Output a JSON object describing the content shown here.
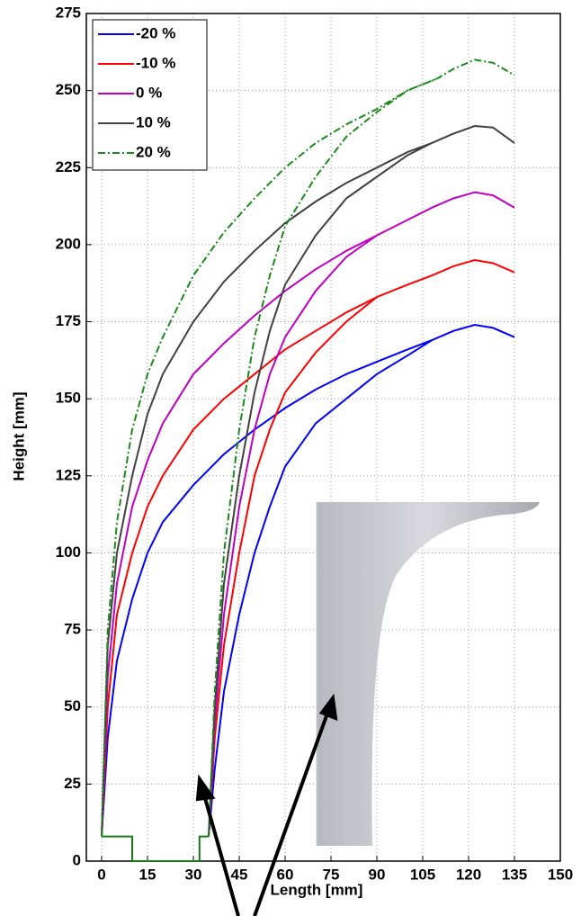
{
  "chart_data": {
    "type": "line",
    "xlabel": "Length [mm]",
    "ylabel": "Height [mm]",
    "xlim": [
      -5,
      150
    ],
    "xticks": [
      0,
      15,
      30,
      45,
      60,
      75,
      90,
      105,
      120,
      135,
      150
    ],
    "ylim": [
      0,
      275
    ],
    "yticks": [
      0,
      25,
      50,
      75,
      100,
      125,
      150,
      175,
      200,
      225,
      250,
      275
    ],
    "grid": true,
    "legend": "upper left",
    "series": [
      {
        "name": "-20 %",
        "color": "#0000ff",
        "dash": "solid",
        "x": [
          0,
          2,
          5,
          10,
          15,
          20,
          30,
          40,
          50,
          60,
          70,
          80,
          90,
          100,
          108,
          115,
          122,
          128,
          135,
          null,
          35,
          37,
          40,
          45,
          50,
          55,
          60,
          70,
          80,
          90,
          100,
          108
        ],
        "values": [
          8,
          40,
          65,
          85,
          100,
          110,
          122,
          132,
          140,
          147,
          153,
          158,
          162,
          166,
          169,
          172,
          174,
          173,
          170,
          null,
          8,
          30,
          55,
          80,
          100,
          115,
          128,
          142,
          150,
          158,
          164,
          169
        ]
      },
      {
        "name": "-10 %",
        "color": "#ff0000",
        "dash": "solid",
        "x": [
          0,
          2,
          5,
          10,
          15,
          20,
          30,
          40,
          50,
          60,
          70,
          80,
          90,
          100,
          108,
          115,
          122,
          128,
          135,
          null,
          35,
          37,
          40,
          45,
          50,
          55,
          60,
          70,
          80,
          90,
          100,
          108
        ],
        "values": [
          8,
          50,
          80,
          100,
          115,
          125,
          140,
          150,
          158,
          166,
          172,
          178,
          183,
          187,
          190,
          193,
          195,
          194,
          191,
          null,
          8,
          40,
          70,
          100,
          125,
          140,
          152,
          165,
          175,
          183,
          187,
          190
        ]
      },
      {
        "name": "0 %",
        "color": "#c000c0",
        "dash": "solid",
        "x": [
          0,
          2,
          5,
          10,
          15,
          20,
          30,
          40,
          50,
          60,
          70,
          80,
          90,
          100,
          108,
          115,
          122,
          128,
          135,
          null,
          35,
          37,
          40,
          45,
          50,
          55,
          60,
          70,
          80,
          90,
          100,
          108
        ],
        "values": [
          8,
          60,
          90,
          115,
          130,
          142,
          158,
          168,
          177,
          185,
          192,
          198,
          203,
          208,
          212,
          215,
          217,
          216,
          212,
          null,
          8,
          45,
          80,
          115,
          140,
          158,
          170,
          185,
          196,
          203,
          208,
          212
        ]
      },
      {
        "name": "10 %",
        "color": "#404040",
        "dash": "solid",
        "x": [
          0,
          2,
          5,
          10,
          15,
          20,
          30,
          40,
          50,
          60,
          70,
          80,
          90,
          100,
          108,
          115,
          122,
          128,
          135,
          null,
          35,
          37,
          40,
          45,
          50,
          55,
          60,
          70,
          80,
          90,
          100,
          108
        ],
        "values": [
          8,
          70,
          100,
          125,
          145,
          158,
          175,
          188,
          198,
          207,
          214,
          220,
          225,
          230,
          233,
          236,
          238.5,
          238,
          233,
          null,
          8,
          50,
          90,
          125,
          152,
          172,
          187,
          203,
          215,
          222,
          229,
          233
        ]
      },
      {
        "name": "20 %",
        "color": "#1a8a1a",
        "dash": "dashdot",
        "x": [
          0,
          2,
          5,
          10,
          15,
          20,
          30,
          40,
          50,
          60,
          70,
          80,
          90,
          100,
          110,
          115,
          122,
          128,
          135,
          null,
          35,
          37,
          40,
          45,
          50,
          55,
          60,
          70,
          80,
          90,
          100,
          110
        ],
        "values": [
          8,
          75,
          110,
          140,
          158,
          170,
          190,
          204,
          215,
          225,
          233,
          239,
          244,
          250,
          254,
          257,
          260,
          259,
          255,
          null,
          8,
          55,
          100,
          140,
          170,
          190,
          206,
          222,
          235,
          243,
          250,
          254
        ]
      },
      {
        "color": "#1a7a1a",
        "dash": "solid",
        "x": [
          0,
          10,
          10,
          32,
          32,
          35
        ],
        "values": [
          8,
          8,
          0,
          0,
          8,
          8
        ]
      }
    ]
  }
}
